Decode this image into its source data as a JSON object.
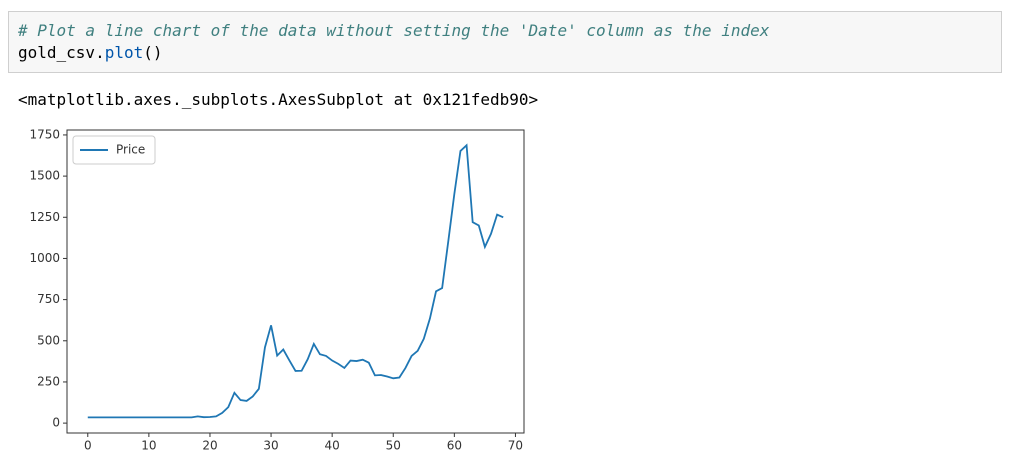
{
  "cell": {
    "code": [
      [
        "# Plot a line chart of the data without setting the 'Date' column as the index"
      ],
      [
        "gold_csv.",
        "plot",
        "()"
      ]
    ],
    "output": "<matplotlib.axes._subplots.AxesSubplot at 0x121fedb90>"
  },
  "chart_data": {
    "type": "line",
    "x": [
      0,
      1,
      2,
      3,
      4,
      5,
      6,
      7,
      8,
      9,
      10,
      11,
      12,
      13,
      14,
      15,
      16,
      17,
      18,
      19,
      20,
      21,
      22,
      23,
      24,
      25,
      26,
      27,
      28,
      29,
      30,
      31,
      32,
      33,
      34,
      35,
      36,
      37,
      38,
      39,
      40,
      41,
      42,
      43,
      44,
      45,
      46,
      47,
      48,
      49,
      50,
      51,
      52,
      53,
      54,
      55,
      56,
      57,
      58,
      59,
      60,
      61,
      62,
      63,
      64,
      65,
      66,
      67,
      68
    ],
    "series": [
      {
        "name": "Price",
        "color": "#1f77b4",
        "values": [
          35,
          35,
          35,
          35,
          35,
          35,
          35,
          35,
          35,
          35,
          35,
          35,
          35,
          35,
          35,
          35,
          35,
          35,
          41,
          36,
          37,
          41,
          62,
          97,
          184,
          140,
          135,
          162,
          208,
          460,
          594,
          410,
          447,
          381,
          317,
          318,
          388,
          481,
          418,
          408,
          380,
          360,
          335,
          380,
          377,
          385,
          367,
          290,
          292,
          283,
          272,
          277,
          335,
          408,
          439,
          512,
          635,
          800,
          820,
          1102,
          1392,
          1653,
          1687,
          1220,
          1200,
          1070,
          1150,
          1266,
          1250
        ]
      }
    ],
    "xlim": [
      -3.4,
      71.4
    ],
    "xticks": [
      0,
      10,
      20,
      30,
      40,
      50,
      60,
      70
    ],
    "ylim": [
      -60,
      1780
    ],
    "yticks": [
      0,
      250,
      500,
      750,
      1000,
      1250,
      1500,
      1750
    ],
    "legend": "upper left"
  }
}
